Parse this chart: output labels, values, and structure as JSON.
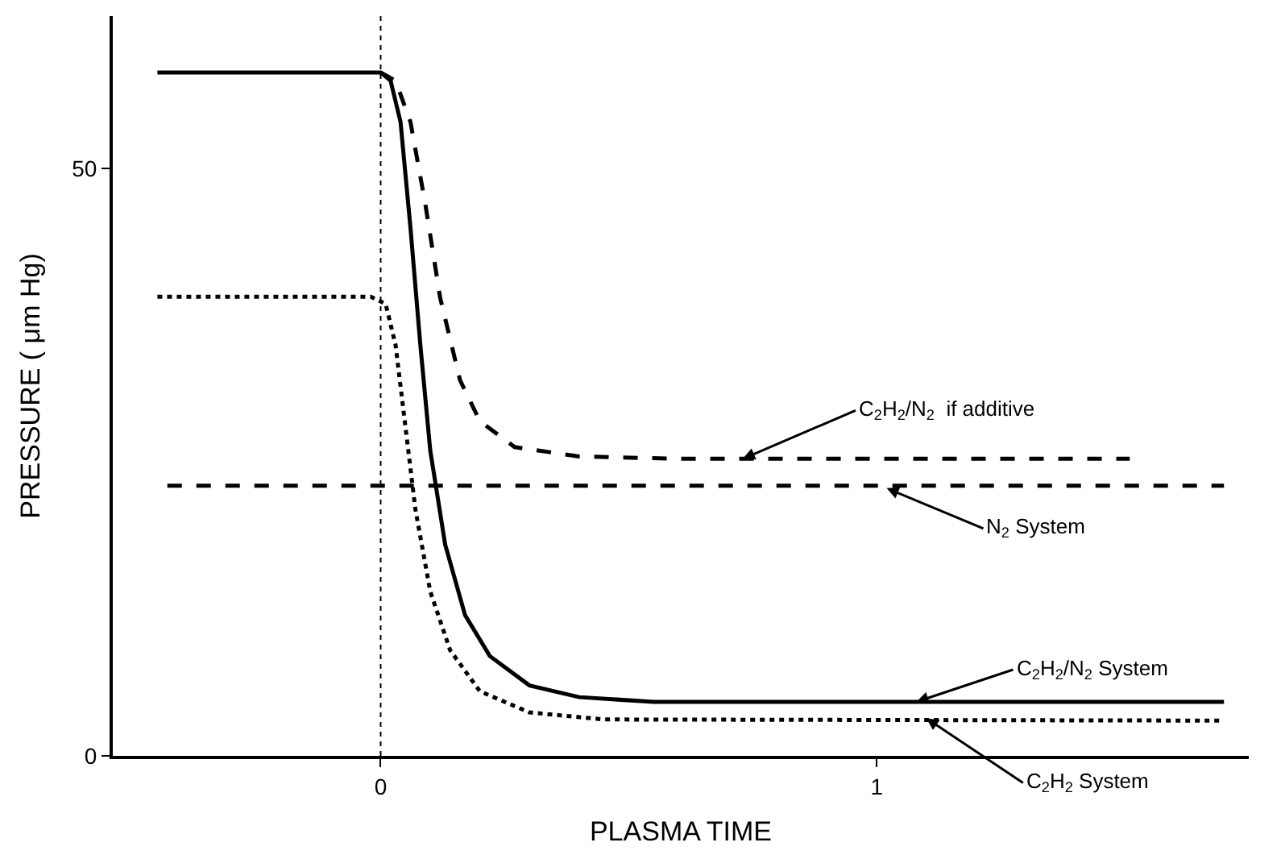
{
  "chart_data": {
    "type": "line",
    "xlabel": "PLASMA TIME",
    "ylabel": "PRESSURE ( μm Hg)",
    "xlim": [
      -0.54,
      1.75
    ],
    "ylim": [
      0,
      63
    ],
    "xticks": [
      0,
      1
    ],
    "yticks": [
      0,
      50
    ],
    "marker": "none",
    "series": [
      {
        "color": "#000000",
        "line_style": "solid",
        "x": [
          -0.45,
          0,
          0.02,
          0.04,
          0.06,
          0.08,
          0.1,
          0.13,
          0.17,
          0.22,
          0.3,
          0.4,
          0.55,
          1.7
        ],
        "values": [
          58.2,
          58.2,
          57.5,
          54,
          45,
          35,
          26,
          18,
          12,
          8.5,
          6,
          5,
          4.6,
          4.6
        ]
      },
      {
        "color": "#000000",
        "line_style": "dashed",
        "x": [
          0,
          0.03,
          0.06,
          0.09,
          0.12,
          0.16,
          0.2,
          0.27,
          0.4,
          0.6,
          1.51
        ],
        "values": [
          58.2,
          57.5,
          54,
          47,
          39,
          32,
          28.5,
          26.3,
          25.5,
          25.3,
          25.3
        ]
      },
      {
        "color": "#000000",
        "line_style": "dashed",
        "x": [
          -0.43,
          1.7
        ],
        "values": [
          23,
          23
        ]
      },
      {
        "color": "#000000",
        "line_style": "dotted",
        "x": [
          -0.45,
          -0.02,
          0.01,
          0.03,
          0.05,
          0.07,
          0.1,
          0.14,
          0.2,
          0.3,
          0.45,
          1.7
        ],
        "values": [
          39.1,
          39.1,
          38.5,
          35,
          28,
          21,
          14,
          9,
          5.5,
          3.7,
          3.1,
          3.0
        ]
      }
    ],
    "ref_lines": [
      {
        "axis": "x",
        "value": 0,
        "color": "#000000",
        "line_style": "dotted"
      }
    ],
    "annotations": [
      {
        "text": "C$_{2}$H$_{2}$/N$_{2}$  if additive",
        "x": 0.73,
        "y": 25.3
      },
      {
        "text": "N$_{2}$ System",
        "x": 1.02,
        "y": 22.8
      },
      {
        "text": "C$_{2}$H$_{2}$/N$_{2}$ System",
        "x": 1.08,
        "y": 4.6
      },
      {
        "text": "C$_{2}$H$_{2}$ System",
        "x": 1.1,
        "y": 3.2
      }
    ]
  }
}
